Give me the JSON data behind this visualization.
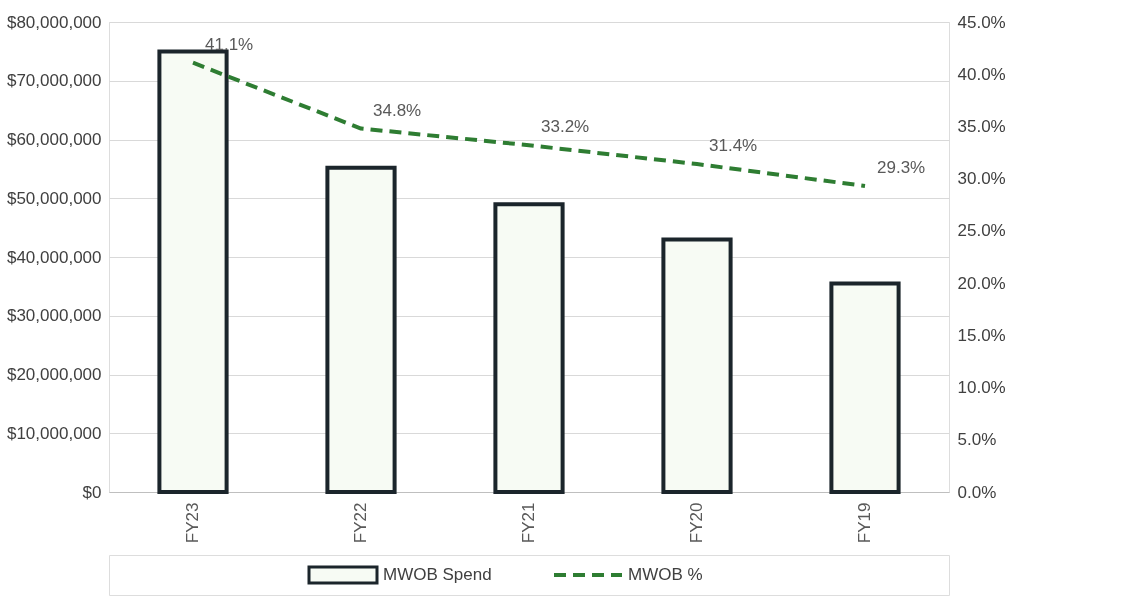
{
  "chart_data": {
    "type": "bar",
    "categories": [
      "FY23",
      "FY22",
      "FY21",
      "FY20",
      "FY19"
    ],
    "series": [
      {
        "name": "MWOB Spend",
        "color": "#f7fbf4",
        "values": [
          75000000,
          55200000,
          49000000,
          43000000,
          35500000
        ]
      },
      {
        "name": "MWOB %",
        "type": "line",
        "axis": "y2",
        "color": "#2e7d32",
        "line_style": "dashed",
        "values": [
          41.1,
          34.8,
          33.2,
          31.4,
          29.3
        ],
        "value_labels": [
          "41.1%",
          "34.8%",
          "33.2%",
          "31.4%",
          "29.3%"
        ]
      }
    ],
    "ylim": [
      0,
      80000000
    ],
    "yticks": [
      {
        "value": 0,
        "label": "$0"
      },
      {
        "value": 10000000,
        "label": "$10,000,000"
      },
      {
        "value": 20000000,
        "label": "$20,000,000"
      },
      {
        "value": 30000000,
        "label": "$30,000,000"
      },
      {
        "value": 40000000,
        "label": "$40,000,000"
      },
      {
        "value": 50000000,
        "label": "$50,000,000"
      },
      {
        "value": 60000000,
        "label": "$60,000,000"
      },
      {
        "value": 70000000,
        "label": "$70,000,000"
      },
      {
        "value": 80000000,
        "label": "$80,000,000"
      }
    ],
    "y2lim": [
      0,
      45
    ],
    "y2ticks": [
      {
        "value": 0,
        "label": "0.0%"
      },
      {
        "value": 5,
        "label": "5.0%"
      },
      {
        "value": 10,
        "label": "10.0%"
      },
      {
        "value": 15,
        "label": "15.0%"
      },
      {
        "value": 20,
        "label": "20.0%"
      },
      {
        "value": 25,
        "label": "25.0%"
      },
      {
        "value": 30,
        "label": "30.0%"
      },
      {
        "value": 35,
        "label": "35.0%"
      },
      {
        "value": 40,
        "label": "40.0%"
      },
      {
        "value": 45,
        "label": "45.0%"
      }
    ],
    "grid": "y",
    "legend": "bottom"
  }
}
